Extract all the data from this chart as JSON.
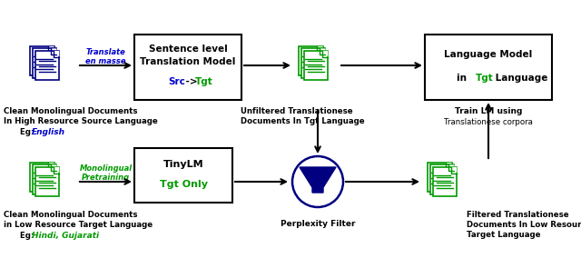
{
  "bg_color": "#ffffff",
  "blue_color": "#0000cc",
  "green_color": "#009900",
  "black_color": "#000000",
  "navy_color": "#000080",
  "top_label1": "Clean Monolingual Documents",
  "top_label2": "In High Resource Source Language",
  "top_label3_prefix": "Eg: ",
  "top_label3_colored": "English",
  "bottom_label1": "Clean Monolingual Documents",
  "bottom_label2": "in Low Resource Target Language",
  "bottom_label3_prefix": "Eg: ",
  "bottom_label3_colored": "Hindi, Gujarati",
  "translate_label1": "Translate",
  "translate_label2": "en masse",
  "monolingual_label1": "Monolingual",
  "monolingual_label2": "Pretraining",
  "tm_line1": "Sentence level",
  "tm_line2": "Translation Model",
  "tm_line3_blue": "Src",
  "tm_line3_mid": " -> ",
  "tm_line3_green": "Tgt",
  "tinylm_line1": "TinyLM",
  "tinylm_line2": "Tgt Only",
  "unfiltered_label1": "Unfiltered Translationese",
  "unfiltered_label2": "Documents In Tgt Language",
  "lm_line1": "Language Model",
  "lm_line2a": "in ",
  "lm_line2b": "Tgt",
  "lm_line2c": " Language",
  "train_bold": "Train LM using",
  "train_normal": "Translationese corpora",
  "perplexity_label": "Perplexity Filter",
  "filtered_label1": "Filtered Translationese",
  "filtered_label2": "Documents In Low Resource",
  "filtered_label3": "Target Language"
}
